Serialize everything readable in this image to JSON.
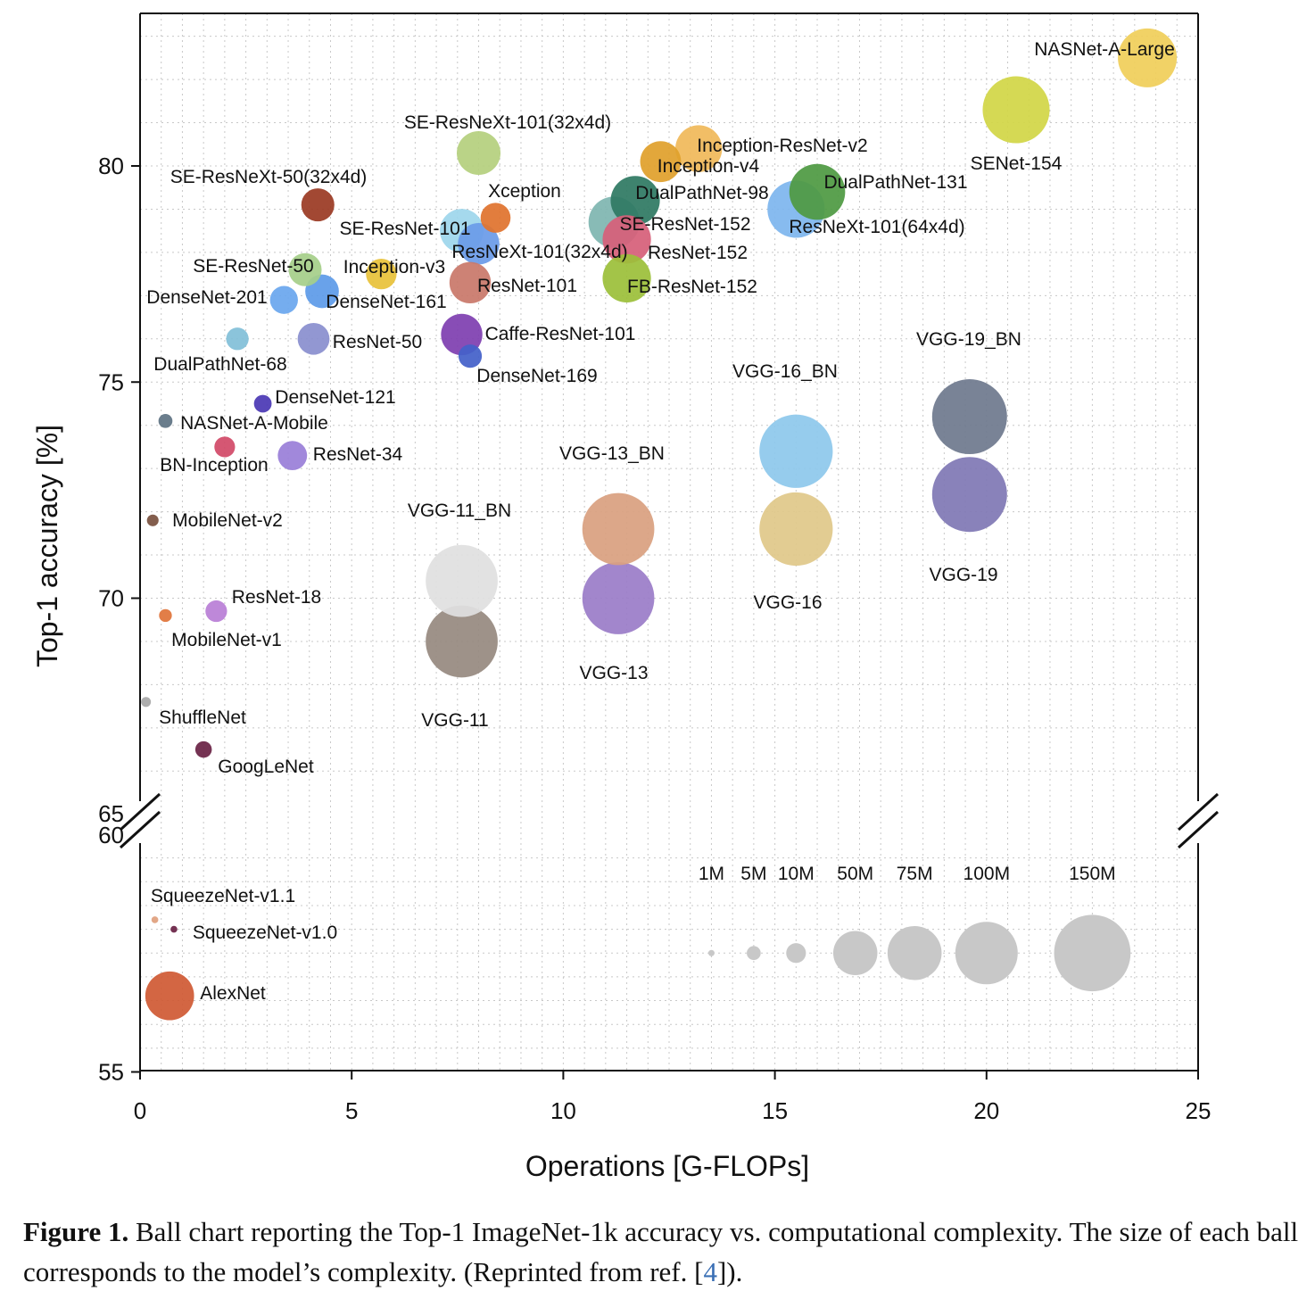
{
  "chart_data": {
    "type": "scatter",
    "subtype": "bubble",
    "xlabel": "Operations [G-FLOPs]",
    "ylabel": "Top-1 accuracy [%]",
    "xlim": [
      0,
      25
    ],
    "x_ticks": [
      0,
      5,
      10,
      15,
      20,
      25
    ],
    "y_ticks_upper": [
      65,
      70,
      75,
      80
    ],
    "y_ticks_lower": [
      55,
      60
    ],
    "ylim_upper": [
      65,
      83
    ],
    "ylim_lower": [
      55,
      60
    ],
    "axis_break": "y between 60 and 65",
    "grid": true,
    "points": [
      {
        "name": "NASNet-A-Large",
        "x": 23.8,
        "y": 82.5,
        "color": "#f0cf5a",
        "size_m": 89
      },
      {
        "name": "SENet-154",
        "x": 20.7,
        "y": 81.3,
        "color": "#d2d647",
        "size_m": 115
      },
      {
        "name": "SE-ResNeXt-101(32x4d)",
        "x": 8.0,
        "y": 80.3,
        "color": "#b5d07e",
        "size_m": 49
      },
      {
        "name": "Inception-ResNet-v2",
        "x": 13.2,
        "y": 80.4,
        "color": "#f0b95a",
        "size_m": 56
      },
      {
        "name": "Inception-v4",
        "x": 12.3,
        "y": 80.1,
        "color": "#e0a02c",
        "size_m": 43
      },
      {
        "name": "DualPathNet-131",
        "x": 16.0,
        "y": 79.4,
        "color": "#4f9a43",
        "size_m": 80
      },
      {
        "name": "DualPathNet-98",
        "x": 11.7,
        "y": 79.2,
        "color": "#2f7a63",
        "size_m": 62
      },
      {
        "name": "ResNeXt-101(64x4d)",
        "x": 15.5,
        "y": 79.0,
        "color": "#7eb6ee",
        "size_m": 84
      },
      {
        "name": "SE-ResNeXt-50(32x4d)",
        "x": 4.2,
        "y": 79.1,
        "color": "#9b3a24",
        "size_m": 28
      },
      {
        "name": "Xception",
        "x": 8.4,
        "y": 78.8,
        "color": "#e0732e",
        "size_m": 23
      },
      {
        "name": "SE-ResNet-152",
        "x": 11.2,
        "y": 78.7,
        "color": "#7fb6b0",
        "size_m": 67
      },
      {
        "name": "ResNet-152",
        "x": 11.5,
        "y": 78.3,
        "color": "#d6607a",
        "size_m": 60
      },
      {
        "name": "SE-ResNet-101",
        "x": 7.6,
        "y": 78.5,
        "color": "#9ed6ec",
        "size_m": 49
      },
      {
        "name": "ResNeXt-101(32x4d)",
        "x": 8.0,
        "y": 78.2,
        "color": "#6b9be8",
        "size_m": 44
      },
      {
        "name": "FB-ResNet-152",
        "x": 11.5,
        "y": 77.4,
        "color": "#9cbf3a",
        "size_m": 60
      },
      {
        "name": "ResNet-101",
        "x": 7.8,
        "y": 77.3,
        "color": "#c9786a",
        "size_m": 44
      },
      {
        "name": "SE-ResNet-50",
        "x": 3.9,
        "y": 77.6,
        "color": "#a6cf8a",
        "size_m": 28
      },
      {
        "name": "Inception-v3",
        "x": 5.7,
        "y": 77.5,
        "color": "#e8c23a",
        "size_m": 24
      },
      {
        "name": "DenseNet-161",
        "x": 4.3,
        "y": 77.1,
        "color": "#5e9be8",
        "size_m": 29
      },
      {
        "name": "DenseNet-201",
        "x": 3.4,
        "y": 76.9,
        "color": "#6aa7ee",
        "size_m": 20
      },
      {
        "name": "Caffe-ResNet-101",
        "x": 7.6,
        "y": 76.1,
        "color": "#7f3fb0",
        "size_m": 44
      },
      {
        "name": "ResNet-50",
        "x": 4.1,
        "y": 76.0,
        "color": "#8a8fcf",
        "size_m": 26
      },
      {
        "name": "DualPathNet-68",
        "x": 2.3,
        "y": 76.0,
        "color": "#82bfd8",
        "size_m": 13
      },
      {
        "name": "DenseNet-169",
        "x": 7.8,
        "y": 75.6,
        "color": "#4461c9",
        "size_m": 14
      },
      {
        "name": "DenseNet-121",
        "x": 2.9,
        "y": 74.5,
        "color": "#4b39b5",
        "size_m": 8
      },
      {
        "name": "NASNet-A-Mobile",
        "x": 0.6,
        "y": 74.1,
        "color": "#5f7383",
        "size_m": 5
      },
      {
        "name": "BN-Inception",
        "x": 2.0,
        "y": 73.5,
        "color": "#d24a68",
        "size_m": 11
      },
      {
        "name": "ResNet-34",
        "x": 3.6,
        "y": 73.3,
        "color": "#9a7fd8",
        "size_m": 22
      },
      {
        "name": "MobileNet-v2",
        "x": 0.3,
        "y": 71.8,
        "color": "#7a5240",
        "size_m": 3.5
      },
      {
        "name": "ResNet-18",
        "x": 1.8,
        "y": 69.7,
        "color": "#b97fd6",
        "size_m": 12
      },
      {
        "name": "MobileNet-v1",
        "x": 0.6,
        "y": 69.6,
        "color": "#e0743a",
        "size_m": 4.2
      },
      {
        "name": "ShuffleNet",
        "x": 0.14,
        "y": 67.6,
        "color": "#a8a8a8",
        "size_m": 2.5
      },
      {
        "name": "GoogLeNet",
        "x": 1.5,
        "y": 66.5,
        "color": "#6b2446",
        "size_m": 7
      },
      {
        "name": "VGG-11",
        "x": 7.6,
        "y": 69.0,
        "color": "#978a80",
        "size_m": 133
      },
      {
        "name": "VGG-11_BN",
        "x": 7.6,
        "y": 70.4,
        "color": "#e0e0e0",
        "size_m": 133
      },
      {
        "name": "VGG-13",
        "x": 11.3,
        "y": 70.0,
        "color": "#9b7dc8",
        "size_m": 133
      },
      {
        "name": "VGG-13_BN",
        "x": 11.3,
        "y": 71.6,
        "color": "#d9a080",
        "size_m": 133
      },
      {
        "name": "VGG-16",
        "x": 15.5,
        "y": 71.6,
        "color": "#e0c88a",
        "size_m": 138
      },
      {
        "name": "VGG-16_BN",
        "x": 15.5,
        "y": 73.4,
        "color": "#8ec8ec",
        "size_m": 138
      },
      {
        "name": "VGG-19",
        "x": 19.6,
        "y": 72.4,
        "color": "#8079b5",
        "size_m": 144
      },
      {
        "name": "VGG-19_BN",
        "x": 19.6,
        "y": 74.2,
        "color": "#6f7a8e",
        "size_m": 144
      },
      {
        "name": "SqueezeNet-v1.1",
        "x": 0.35,
        "y": 58.2,
        "color": "#e0a07e",
        "size_m": 1.2
      },
      {
        "name": "SqueezeNet-v1.0",
        "x": 0.8,
        "y": 58.0,
        "color": "#6b2446",
        "size_m": 1.2
      },
      {
        "name": "AlexNet",
        "x": 0.7,
        "y": 56.6,
        "color": "#d05a35",
        "size_m": 61
      }
    ],
    "size_legend": [
      {
        "label": "1M",
        "size_m": 1,
        "x": 13.5
      },
      {
        "label": "5M",
        "size_m": 5,
        "x": 14.5
      },
      {
        "label": "10M",
        "size_m": 10,
        "x": 15.5
      },
      {
        "label": "50M",
        "size_m": 50,
        "x": 16.9
      },
      {
        "label": "75M",
        "size_m": 75,
        "x": 18.3
      },
      {
        "label": "100M",
        "size_m": 100,
        "x": 20.0
      },
      {
        "label": "150M",
        "size_m": 150,
        "x": 22.5
      }
    ],
    "size_legend_y": 57.5,
    "size_legend_color": "#c8c8c8"
  },
  "caption": {
    "figure_label": "Figure 1.",
    "text_before_ref": "Ball chart reporting the Top-1 ImageNet-1k accuracy vs. computational complexity. The size of each ball corresponds to the model’s complexity. (Reprinted from ref. [",
    "ref": "4",
    "text_after_ref": "])."
  }
}
